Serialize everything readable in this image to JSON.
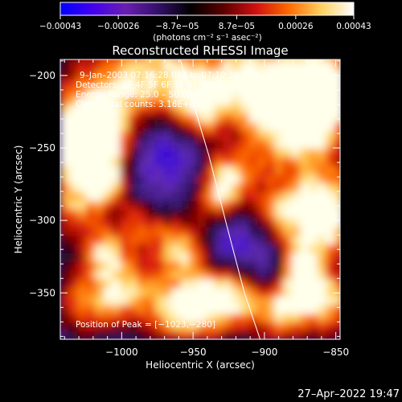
{
  "chart_data": {
    "type": "heatmap",
    "title": "Reconstructed RHESSI Image",
    "xlabel": "Heliocentric X (arcsec)",
    "ylabel": "Heliocentric Y (arcsec)",
    "xlim": [
      -1043,
      -847
    ],
    "ylim": [
      -382,
      -189
    ],
    "xticks": [
      -1000,
      -950,
      -900,
      -850
    ],
    "xtick_labels": [
      "−1000",
      "−950",
      "−900",
      "−850"
    ],
    "yticks": [
      -200,
      -250,
      -300,
      -350
    ],
    "ytick_labels": [
      "−200",
      "−250",
      "−300",
      "−350"
    ],
    "colorbar": {
      "min": -0.00043,
      "max": 0.00043,
      "tick_values": [
        -0.00043,
        -0.00026,
        -8.7e-05,
        8.7e-05,
        0.00026,
        0.00043
      ],
      "tick_labels": [
        "−0.00043",
        "−0.00026",
        "−8.7e−05",
        "8.7e−05",
        "0.00026",
        "0.00043"
      ],
      "unit_label": "(photons cm⁻² s⁻¹ asec⁻²)",
      "colors": [
        "#0000ff",
        "#4400ee",
        "#6a1fb0",
        "#33106a",
        "#000000",
        "#5a0000",
        "#d01010",
        "#ff6a00",
        "#ffd060",
        "#ffffff"
      ]
    },
    "annotations": [
      "9–Jan–2003 07:16:28.000 to 07:19:36.000",
      "Detectors: 3F 4F 5F 6F 7F 8F, Att 0",
      "Energy Range: 25.0 – 50.0 keV",
      "Clean    Total counts: 3.18E+03"
    ],
    "peak_label": "Position of Peak = [−1023,−280]",
    "limb_curve": {
      "x": [
        -959,
        -939,
        -926,
        -914,
        -903
      ],
      "y": [
        -189,
        -255,
        -305,
        -350,
        -382
      ]
    }
  },
  "footer": {
    "timestamp": "27–Apr–2022 19:47"
  }
}
